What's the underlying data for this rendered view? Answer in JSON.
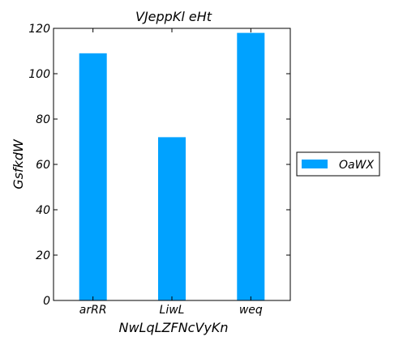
{
  "chart_data": {
    "type": "bar",
    "title": "VJeppKl eHt",
    "xlabel": "NwLqLZFNcVyKn",
    "ylabel": "GsfkdW",
    "categories": [
      "arRR",
      "LiwL",
      "weq"
    ],
    "series": [
      {
        "name": "OaWX",
        "values": [
          109,
          72,
          118
        ],
        "color": "#00a2ff"
      }
    ],
    "ylim": [
      0,
      120
    ],
    "yticks": [
      0,
      20,
      40,
      60,
      80,
      100,
      120
    ],
    "grid": false,
    "legend": "outside-right"
  }
}
